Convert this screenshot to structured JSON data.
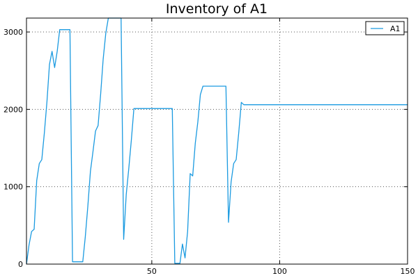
{
  "chart_data": {
    "type": "line",
    "title": "Inventory of A1",
    "xlabel": "",
    "ylabel": "",
    "xlim": [
      1,
      150
    ],
    "ylim": [
      0,
      3180
    ],
    "xticks": [
      50,
      100,
      150
    ],
    "yticks": [
      0,
      1000,
      2000,
      3000
    ],
    "grid": true,
    "legend_position": "top-right",
    "series": [
      {
        "name": "A1",
        "color": "#1a9ae0",
        "points": [
          [
            1,
            0
          ],
          [
            2,
            250
          ],
          [
            3,
            420
          ],
          [
            4,
            450
          ],
          [
            5,
            1080
          ],
          [
            6,
            1300
          ],
          [
            7,
            1350
          ],
          [
            8,
            1700
          ],
          [
            9,
            2100
          ],
          [
            10,
            2580
          ],
          [
            11,
            2750
          ],
          [
            12,
            2540
          ],
          [
            13,
            2750
          ],
          [
            14,
            3030
          ],
          [
            15,
            3030
          ],
          [
            16,
            3030
          ],
          [
            17,
            3030
          ],
          [
            18,
            3030
          ],
          [
            19,
            30
          ],
          [
            20,
            30
          ],
          [
            21,
            30
          ],
          [
            22,
            30
          ],
          [
            23,
            30
          ],
          [
            24,
            350
          ],
          [
            25,
            750
          ],
          [
            26,
            1200
          ],
          [
            27,
            1450
          ],
          [
            28,
            1720
          ],
          [
            29,
            1790
          ],
          [
            30,
            2200
          ],
          [
            31,
            2650
          ],
          [
            32,
            2980
          ],
          [
            33,
            3180
          ],
          [
            34,
            3180
          ],
          [
            35,
            3180
          ],
          [
            36,
            3180
          ],
          [
            37,
            3180
          ],
          [
            38,
            3180
          ],
          [
            39,
            320
          ],
          [
            40,
            900
          ],
          [
            41,
            1230
          ],
          [
            42,
            1600
          ],
          [
            43,
            2010
          ],
          [
            44,
            2010
          ],
          [
            50,
            2010
          ],
          [
            55,
            2010
          ],
          [
            58,
            2010
          ],
          [
            59,
            10
          ],
          [
            60,
            10
          ],
          [
            61,
            10
          ],
          [
            62,
            260
          ],
          [
            63,
            80
          ],
          [
            64,
            420
          ],
          [
            65,
            1170
          ],
          [
            66,
            1140
          ],
          [
            67,
            1560
          ],
          [
            68,
            1840
          ],
          [
            69,
            2190
          ],
          [
            70,
            2300
          ],
          [
            71,
            2300
          ],
          [
            75,
            2300
          ],
          [
            79,
            2300
          ],
          [
            80,
            540
          ],
          [
            81,
            1060
          ],
          [
            82,
            1300
          ],
          [
            83,
            1350
          ],
          [
            84,
            1700
          ],
          [
            85,
            2090
          ],
          [
            86,
            2060
          ],
          [
            90,
            2060
          ],
          [
            100,
            2060
          ],
          [
            120,
            2060
          ],
          [
            150,
            2060
          ]
        ]
      }
    ]
  }
}
